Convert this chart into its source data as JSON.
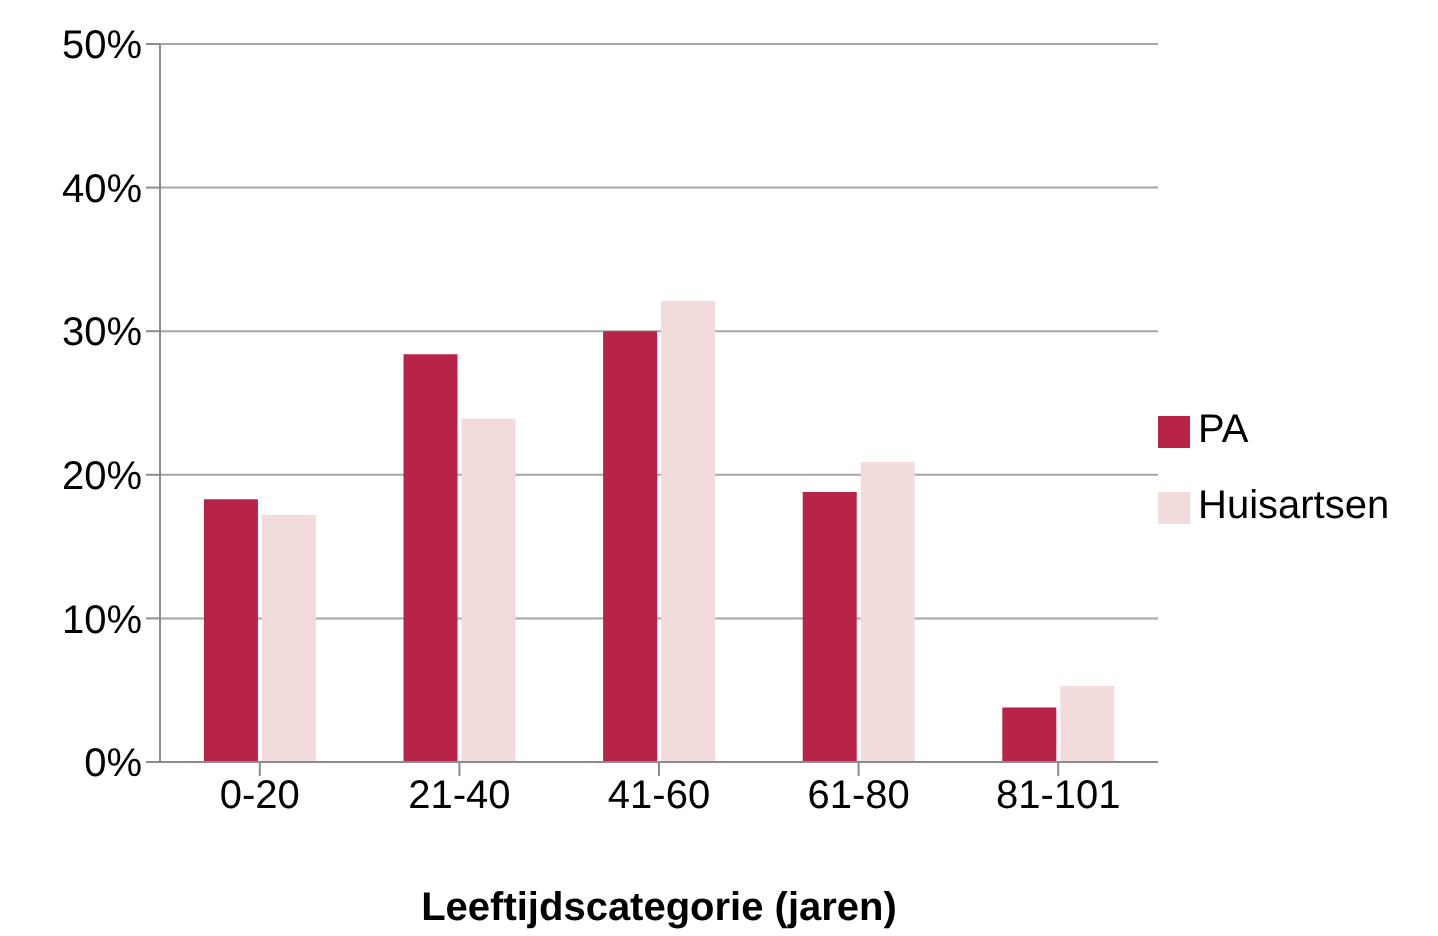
{
  "chart_data": {
    "type": "bar",
    "xlabel": "Leeftijdscategorie (jaren)",
    "categories": [
      "0-20",
      "21-40",
      "41-60",
      "61-80",
      "81-101"
    ],
    "series": [
      {
        "name": "PA",
        "color": "#b8234a",
        "values": [
          18.3,
          28.4,
          30.0,
          18.8,
          3.8
        ]
      },
      {
        "name": "Huisartsen",
        "color": "#f2dbdb",
        "values": [
          17.2,
          23.9,
          32.1,
          20.9,
          5.3
        ]
      }
    ],
    "ylim": [
      0,
      50
    ],
    "yticks": [
      {
        "value": 0,
        "label": "0%"
      },
      {
        "value": 10,
        "label": "10%"
      },
      {
        "value": 20,
        "label": "20%"
      },
      {
        "value": 30,
        "label": "30%"
      },
      {
        "value": 40,
        "label": "40%"
      },
      {
        "value": 50,
        "label": "50%"
      }
    ],
    "grid": "y",
    "legend": "right"
  }
}
